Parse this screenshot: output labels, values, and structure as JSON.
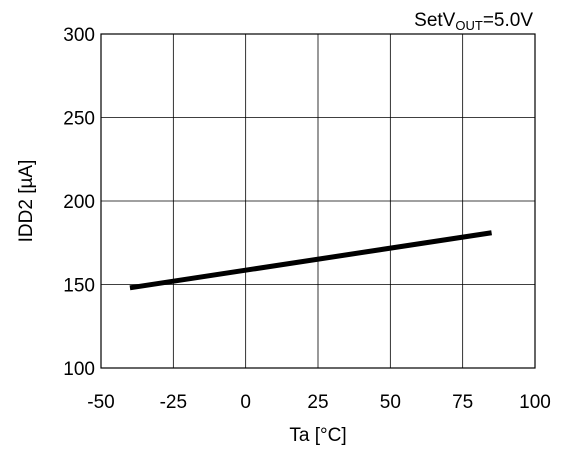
{
  "chart_data": {
    "type": "line",
    "title": "",
    "annotation": {
      "prefix": "SetV",
      "subscript": "OUT",
      "suffix": "=5.0V"
    },
    "xlabel": "Ta [°C]",
    "ylabel": "IDD2 [µA]",
    "xlim": [
      -50,
      100
    ],
    "ylim": [
      100,
      300
    ],
    "x_ticks": [
      -50,
      -25,
      0,
      25,
      50,
      75,
      100
    ],
    "x_tick_labels": [
      "-50",
      "-25",
      "0",
      "25",
      "50",
      "75",
      "100"
    ],
    "y_ticks": [
      100,
      150,
      200,
      250,
      300
    ],
    "y_tick_labels": [
      "100",
      "150",
      "200",
      "250",
      "300"
    ],
    "grid": true,
    "series": [
      {
        "x": [
          -40,
          85
        ],
        "y": [
          148,
          181
        ],
        "color": "#000000"
      }
    ]
  }
}
